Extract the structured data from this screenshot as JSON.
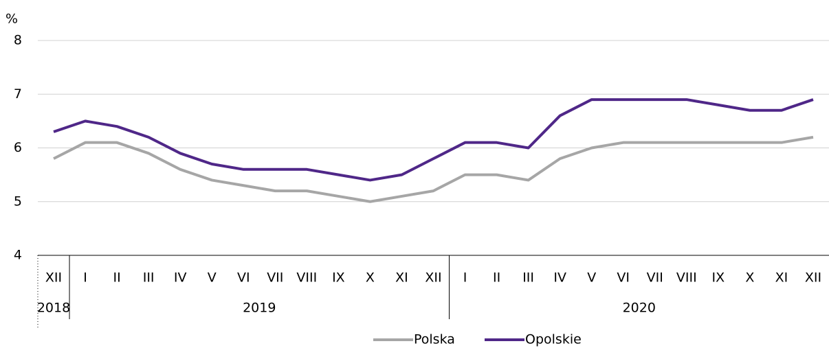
{
  "chart_data": {
    "type": "line",
    "y_unit": "%",
    "categories": [
      "XII",
      "I",
      "II",
      "III",
      "IV",
      "V",
      "VI",
      "VII",
      "VIII",
      "IX",
      "X",
      "XI",
      "XII",
      "I",
      "II",
      "III",
      "IV",
      "V",
      "VI",
      "VII",
      "VIII",
      "IX",
      "X",
      "XI",
      "XII"
    ],
    "x_groups": [
      {
        "label": "2018",
        "span": 1
      },
      {
        "label": "2019",
        "span": 12
      },
      {
        "label": "2020",
        "span": 12
      }
    ],
    "series": [
      {
        "name": "Polska",
        "color": "#a6a6a6",
        "values": [
          5.8,
          6.1,
          6.1,
          5.9,
          5.6,
          5.4,
          5.3,
          5.2,
          5.2,
          5.1,
          5.0,
          5.1,
          5.2,
          5.5,
          5.5,
          5.4,
          5.8,
          6.0,
          6.1,
          6.1,
          6.1,
          6.1,
          6.1,
          6.1,
          6.2
        ]
      },
      {
        "name": "Opolskie",
        "color": "#4f2788",
        "values": [
          6.3,
          6.5,
          6.4,
          6.2,
          5.9,
          5.7,
          5.6,
          5.6,
          5.6,
          5.5,
          5.4,
          5.5,
          5.8,
          6.1,
          6.1,
          6.0,
          6.6,
          6.9,
          6.9,
          6.9,
          6.9,
          6.8,
          6.7,
          6.7,
          6.9
        ]
      }
    ],
    "ylim": [
      4,
      8
    ],
    "yticks": [
      4,
      5,
      6,
      7,
      8
    ],
    "grid": true,
    "legend": "bottom"
  }
}
